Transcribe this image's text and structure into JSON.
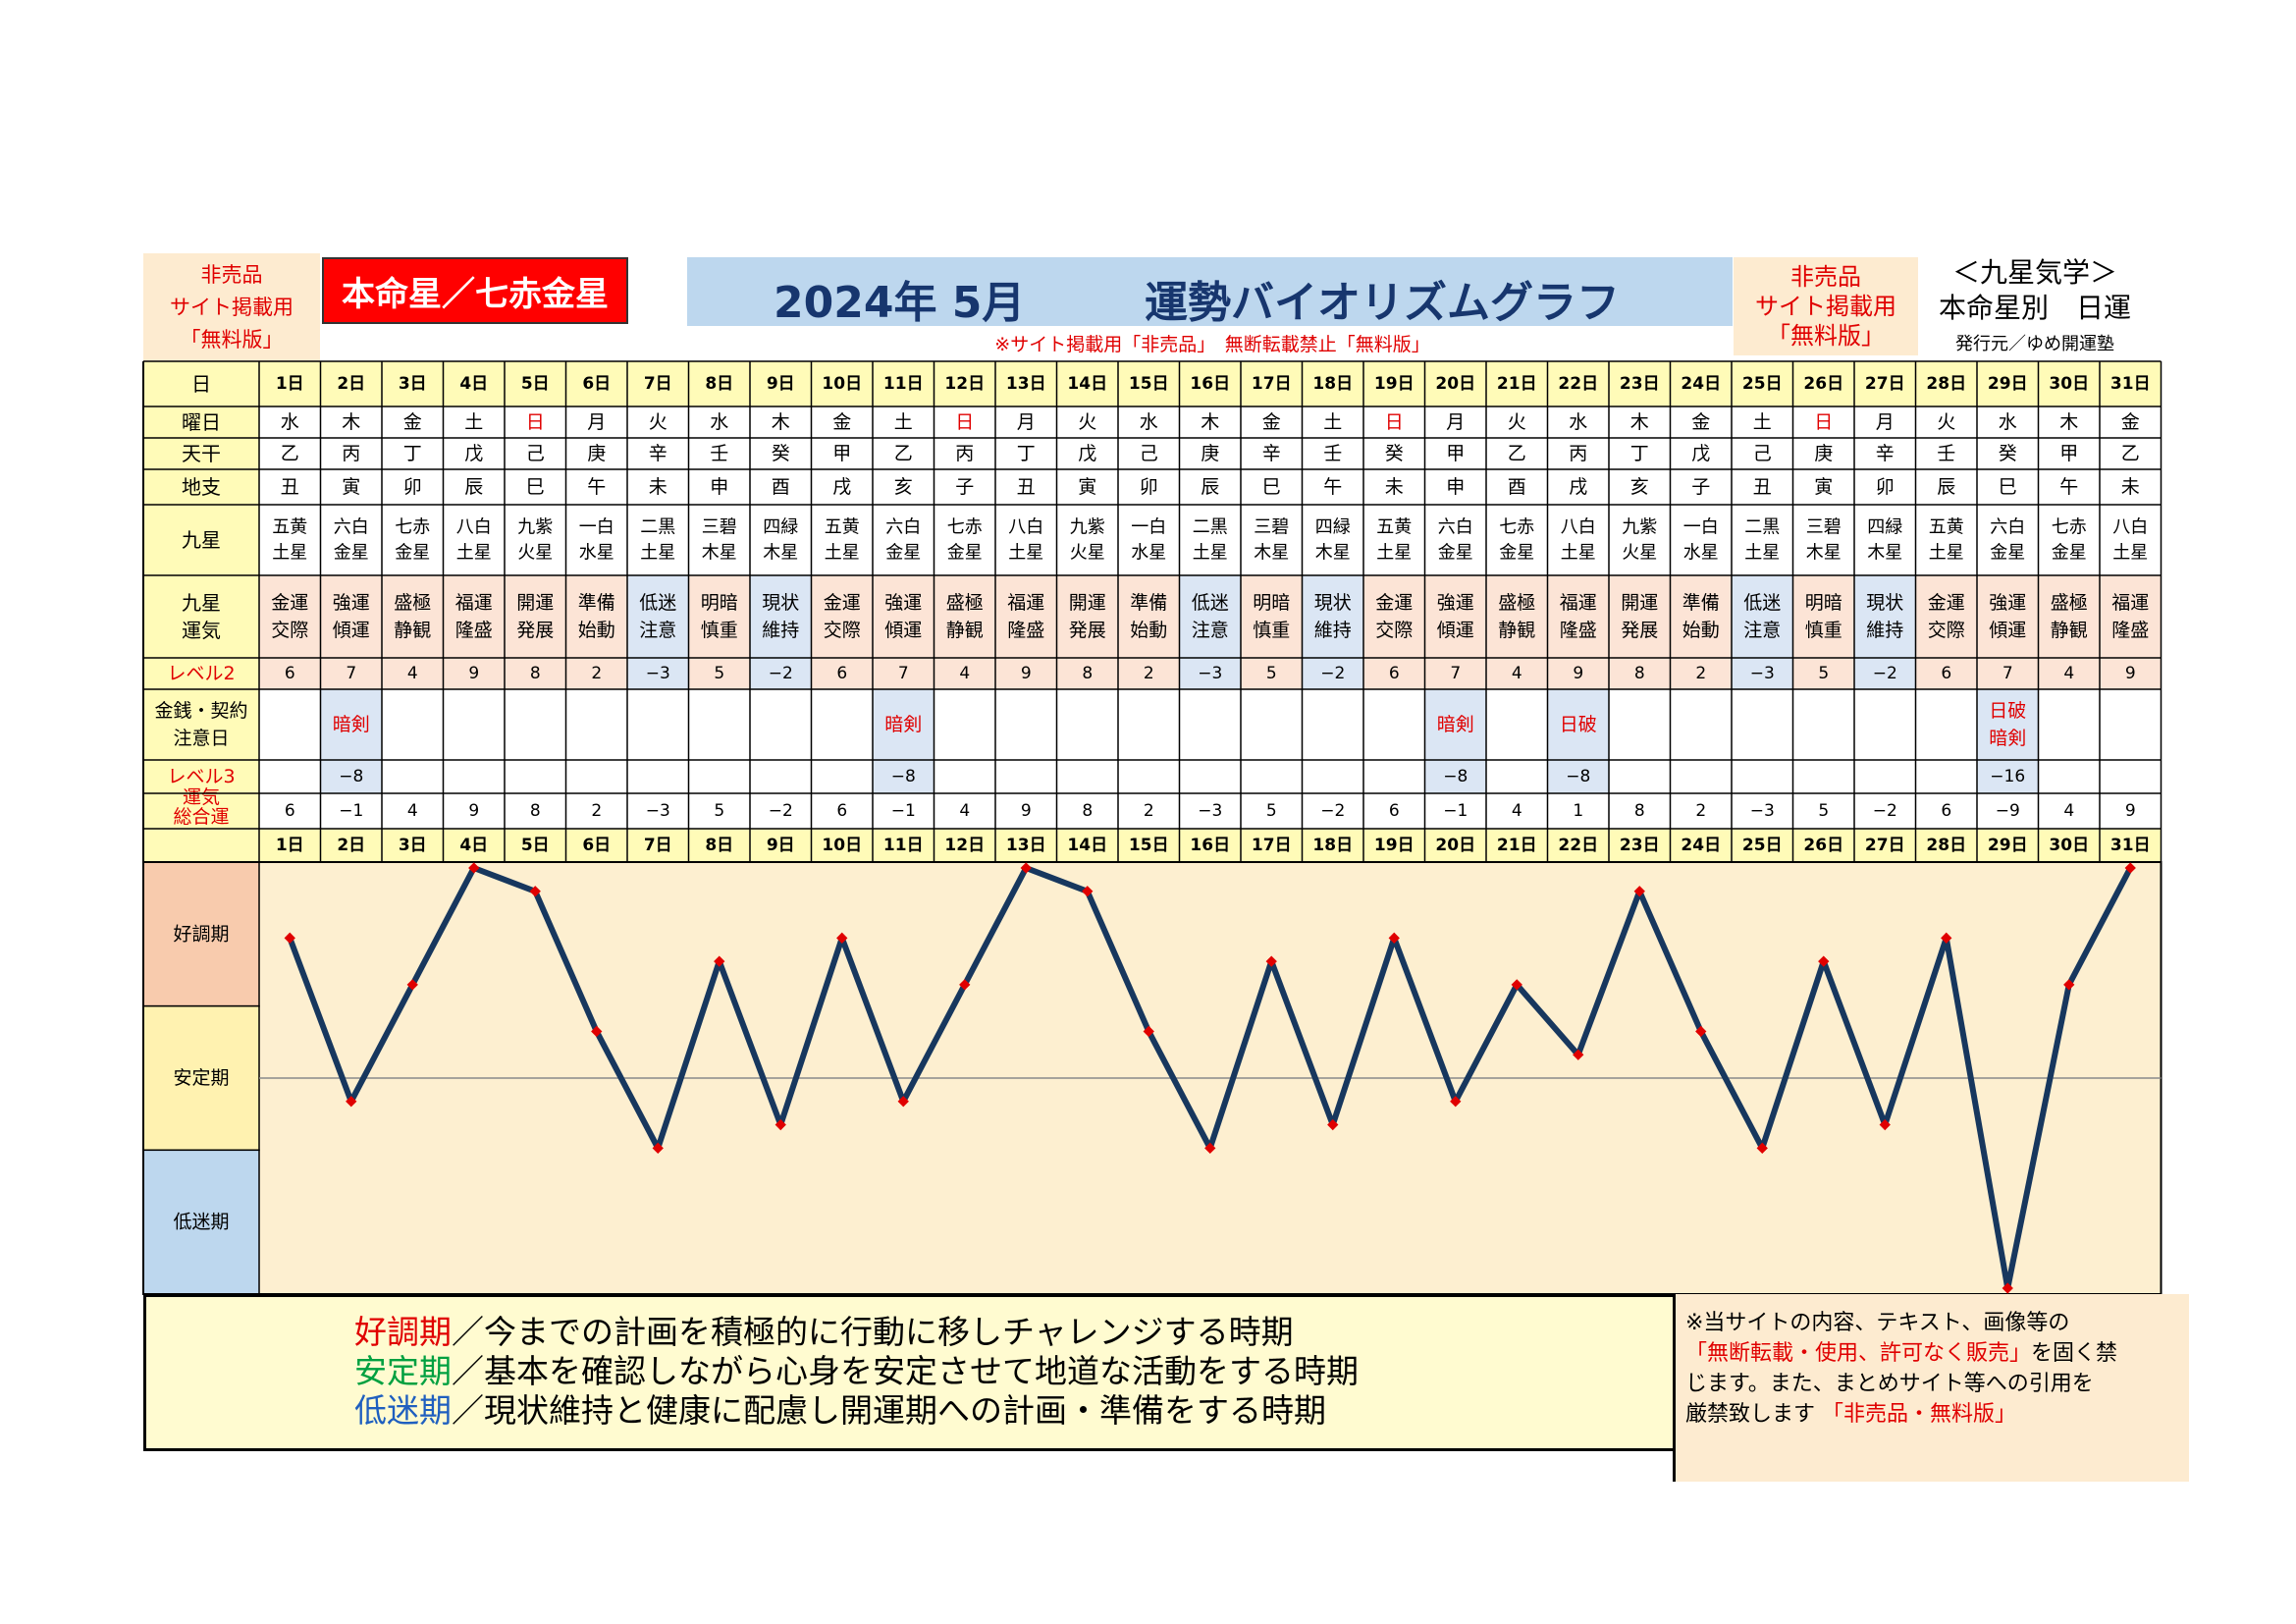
{
  "header": {
    "left_note": [
      "非売品",
      "サイト掲載用",
      "「無料版」"
    ],
    "honmei": "本命星／七赤金星",
    "year_month": "2024年 5月",
    "title": "運勢バイオリズムグラフ",
    "notice": "※サイト掲載用「非売品」　無断転載禁止「無料版」",
    "right_note": [
      "非売品",
      "サイト掲載用",
      "「無料版」"
    ],
    "kyusei": [
      "＜九星気学＞",
      "本命星別　日運"
    ],
    "publisher": "発行元／ゆめ開運塾"
  },
  "row_labels": {
    "day": "日",
    "weekday": "曜日",
    "tenkan": "天干",
    "chishi": "地支",
    "kyusei": "九星",
    "kyusei_unki": [
      "九星",
      "運気"
    ],
    "level2": "レベル2",
    "kinsen": [
      "金銭・契約",
      "注意日"
    ],
    "level3": "レベル3",
    "total": [
      "運気",
      "総合運"
    ]
  },
  "days": [
    "1日",
    "2日",
    "3日",
    "4日",
    "5日",
    "6日",
    "7日",
    "8日",
    "9日",
    "10日",
    "11日",
    "12日",
    "13日",
    "14日",
    "15日",
    "16日",
    "17日",
    "18日",
    "19日",
    "20日",
    "21日",
    "22日",
    "23日",
    "24日",
    "25日",
    "26日",
    "27日",
    "28日",
    "29日",
    "30日",
    "31日"
  ],
  "weekdays": [
    "水",
    "木",
    "金",
    "土",
    "日",
    "月",
    "火",
    "水",
    "木",
    "金",
    "土",
    "日",
    "月",
    "火",
    "水",
    "木",
    "金",
    "土",
    "日",
    "月",
    "火",
    "水",
    "木",
    "金",
    "土",
    "日",
    "月",
    "火",
    "水",
    "木",
    "金"
  ],
  "tenkan": [
    "乙",
    "丙",
    "丁",
    "戊",
    "己",
    "庚",
    "辛",
    "壬",
    "癸",
    "甲",
    "乙",
    "丙",
    "丁",
    "戊",
    "己",
    "庚",
    "辛",
    "壬",
    "癸",
    "甲",
    "乙",
    "丙",
    "丁",
    "戊",
    "己",
    "庚",
    "辛",
    "壬",
    "癸",
    "甲",
    "乙"
  ],
  "chishi": [
    "丑",
    "寅",
    "卯",
    "辰",
    "巳",
    "午",
    "未",
    "申",
    "酉",
    "戌",
    "亥",
    "子",
    "丑",
    "寅",
    "卯",
    "辰",
    "巳",
    "午",
    "未",
    "申",
    "酉",
    "戌",
    "亥",
    "子",
    "丑",
    "寅",
    "卯",
    "辰",
    "巳",
    "午",
    "未"
  ],
  "kyusei": [
    [
      "五黄",
      "土星"
    ],
    [
      "六白",
      "金星"
    ],
    [
      "七赤",
      "金星"
    ],
    [
      "八白",
      "土星"
    ],
    [
      "九紫",
      "火星"
    ],
    [
      "一白",
      "水星"
    ],
    [
      "二黒",
      "土星"
    ],
    [
      "三碧",
      "木星"
    ],
    [
      "四緑",
      "木星"
    ],
    [
      "五黄",
      "土星"
    ],
    [
      "六白",
      "金星"
    ],
    [
      "七赤",
      "金星"
    ],
    [
      "八白",
      "土星"
    ],
    [
      "九紫",
      "火星"
    ],
    [
      "一白",
      "水星"
    ],
    [
      "二黒",
      "土星"
    ],
    [
      "三碧",
      "木星"
    ],
    [
      "四緑",
      "木星"
    ],
    [
      "五黄",
      "土星"
    ],
    [
      "六白",
      "金星"
    ],
    [
      "七赤",
      "金星"
    ],
    [
      "八白",
      "土星"
    ],
    [
      "九紫",
      "火星"
    ],
    [
      "一白",
      "水星"
    ],
    [
      "二黒",
      "土星"
    ],
    [
      "三碧",
      "木星"
    ],
    [
      "四緑",
      "木星"
    ],
    [
      "五黄",
      "土星"
    ],
    [
      "六白",
      "金星"
    ],
    [
      "七赤",
      "金星"
    ],
    [
      "八白",
      "土星"
    ]
  ],
  "unki": [
    [
      "金運",
      "交際"
    ],
    [
      "強運",
      "傾運"
    ],
    [
      "盛極",
      "静観"
    ],
    [
      "福運",
      "隆盛"
    ],
    [
      "開運",
      "発展"
    ],
    [
      "準備",
      "始動"
    ],
    [
      "低迷",
      "注意"
    ],
    [
      "明暗",
      "慎重"
    ],
    [
      "現状",
      "維持"
    ],
    [
      "金運",
      "交際"
    ],
    [
      "強運",
      "傾運"
    ],
    [
      "盛極",
      "静観"
    ],
    [
      "福運",
      "隆盛"
    ],
    [
      "開運",
      "発展"
    ],
    [
      "準備",
      "始動"
    ],
    [
      "低迷",
      "注意"
    ],
    [
      "明暗",
      "慎重"
    ],
    [
      "現状",
      "維持"
    ],
    [
      "金運",
      "交際"
    ],
    [
      "強運",
      "傾運"
    ],
    [
      "盛極",
      "静観"
    ],
    [
      "福運",
      "隆盛"
    ],
    [
      "開運",
      "発展"
    ],
    [
      "準備",
      "始動"
    ],
    [
      "低迷",
      "注意"
    ],
    [
      "明暗",
      "慎重"
    ],
    [
      "現状",
      "維持"
    ],
    [
      "金運",
      "交際"
    ],
    [
      "強運",
      "傾運"
    ],
    [
      "盛極",
      "静観"
    ],
    [
      "福運",
      "隆盛"
    ]
  ],
  "level2": [
    "6",
    "7",
    "4",
    "9",
    "8",
    "2",
    "−3",
    "5",
    "−2",
    "6",
    "7",
    "4",
    "9",
    "8",
    "2",
    "−3",
    "5",
    "−2",
    "6",
    "7",
    "4",
    "9",
    "8",
    "2",
    "−3",
    "5",
    "−2",
    "6",
    "7",
    "4",
    "9"
  ],
  "kinsen": [
    "",
    "暗剣",
    "",
    "",
    "",
    "",
    "",
    "",
    "",
    "",
    "暗剣",
    "",
    "",
    "",
    "",
    "",
    "",
    "",
    "",
    "暗剣",
    "",
    "日破",
    "",
    "",
    "",
    "",
    "",
    "",
    "日破\n暗剣",
    "",
    ""
  ],
  "level3": [
    "",
    "−8",
    "",
    "",
    "",
    "",
    "",
    "",
    "",
    "",
    "−8",
    "",
    "",
    "",
    "",
    "",
    "",
    "",
    "",
    "−8",
    "",
    "−8",
    "",
    "",
    "",
    "",
    "",
    "",
    "−16",
    "",
    ""
  ],
  "total": [
    "6",
    "−1",
    "4",
    "9",
    "8",
    "2",
    "−3",
    "5",
    "−2",
    "6",
    "−1",
    "4",
    "9",
    "8",
    "2",
    "−3",
    "5",
    "−2",
    "6",
    "−1",
    "4",
    "1",
    "8",
    "2",
    "−3",
    "5",
    "−2",
    "6",
    "−9",
    "4",
    "9"
  ],
  "bands": [
    "好調期",
    "安定期",
    "低迷期"
  ],
  "legend": [
    {
      "term": "好調期",
      "text": "／今までの計画を積極的に行動に移しチャレンジする時期",
      "color": "#e00000"
    },
    {
      "term": "安定期",
      "text": "／基本を確認しながら心身を安定させて地道な活動をする時期",
      "color": "#00a040"
    },
    {
      "term": "低迷期",
      "text": "／現状維持と健康に配慮し開運期への計画・準備をする時期",
      "color": "#1f5fbf"
    }
  ],
  "copyright": {
    "line1": "※当サイトの内容、テキスト、画像等の",
    "line2_red": "「無断転載・使用、許可なく販売」",
    "line2_rest": "を固く禁",
    "line3": "じます。また、まとめサイト等への引用を",
    "line4": "厳禁致します",
    "line4_red": "「非売品・無料版」"
  },
  "colors": {
    "line": "#17375e",
    "marker": "#e00000",
    "header_beige": "#fdebd0",
    "cell_blue": "#dbe6f4",
    "cell_pink": "#fce4d6",
    "day_yellow": "#fffbb8",
    "band_good": "#f8cbad",
    "band_stable": "#fff2b0",
    "band_low": "#bdd7ee",
    "plot_bg": "#fdefd0"
  },
  "chart_data": {
    "type": "line",
    "categories": [
      "1日",
      "2日",
      "3日",
      "4日",
      "5日",
      "6日",
      "7日",
      "8日",
      "9日",
      "10日",
      "11日",
      "12日",
      "13日",
      "14日",
      "15日",
      "16日",
      "17日",
      "18日",
      "19日",
      "20日",
      "21日",
      "22日",
      "23日",
      "24日",
      "25日",
      "26日",
      "27日",
      "28日",
      "29日",
      "30日",
      "31日"
    ],
    "series": [
      {
        "values": [
          6,
          -1,
          4,
          9,
          8,
          2,
          -3,
          5,
          -2,
          6,
          -1,
          4,
          9,
          8,
          2,
          -3,
          5,
          -2,
          6,
          -1,
          4,
          1,
          8,
          2,
          -3,
          5,
          -2,
          6,
          -9,
          4,
          9
        ]
      }
    ],
    "ylim": [
      -9,
      9
    ],
    "grid": "baseline at 0"
  }
}
